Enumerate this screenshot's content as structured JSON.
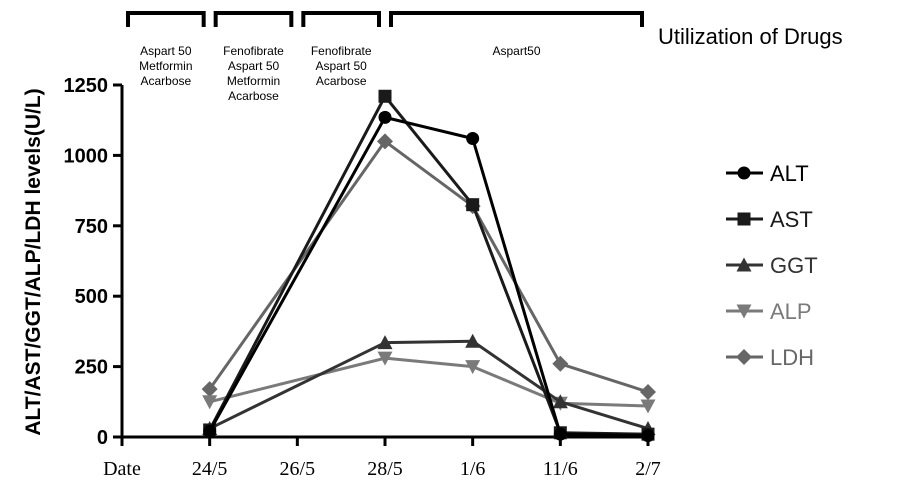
{
  "chart_data": {
    "type": "line",
    "ylabel": "ALT/AST/GGT/ALP/LDH levels(U/L)",
    "ylim": [
      0,
      1250
    ],
    "yticks": [
      0,
      250,
      500,
      750,
      1000,
      1250
    ],
    "categories": [
      "Date",
      "24/5",
      "26/5",
      "28/5",
      "1/6",
      "11/6",
      "2/7"
    ],
    "series": [
      {
        "name": "ALT",
        "marker": "circle",
        "color": "#000000",
        "values": [
          null,
          20,
          null,
          1135,
          1060,
          10,
          5
        ]
      },
      {
        "name": "AST",
        "marker": "square",
        "color": "#1a1a1a",
        "values": [
          null,
          25,
          null,
          1210,
          825,
          15,
          10
        ]
      },
      {
        "name": "GGT",
        "marker": "triangle-up",
        "color": "#333333",
        "values": [
          null,
          30,
          null,
          335,
          340,
          125,
          30
        ]
      },
      {
        "name": "ALP",
        "marker": "triangle-down",
        "color": "#7a7a7a",
        "values": [
          null,
          125,
          null,
          280,
          250,
          120,
          110
        ]
      },
      {
        "name": "LDH",
        "marker": "diamond",
        "color": "#666666",
        "values": [
          null,
          170,
          null,
          1050,
          820,
          260,
          160
        ]
      }
    ],
    "legend_title": "Utilization of Drugs",
    "legend_position": "right",
    "annotations": [
      {
        "label": "Aspart 50\nMetformin\nAcarbose",
        "from": "Date",
        "to": "24/5"
      },
      {
        "label": "Fenofibrate\nAspart 50\nMetformin\nAcarbose",
        "from": "24/5",
        "to": "26/5"
      },
      {
        "label": "Fenofibrate\nAspart 50\nAcarbose",
        "from": "26/5",
        "to": "28/5"
      },
      {
        "label": "Aspart50",
        "from": "28/5",
        "to": "2/7"
      }
    ]
  }
}
